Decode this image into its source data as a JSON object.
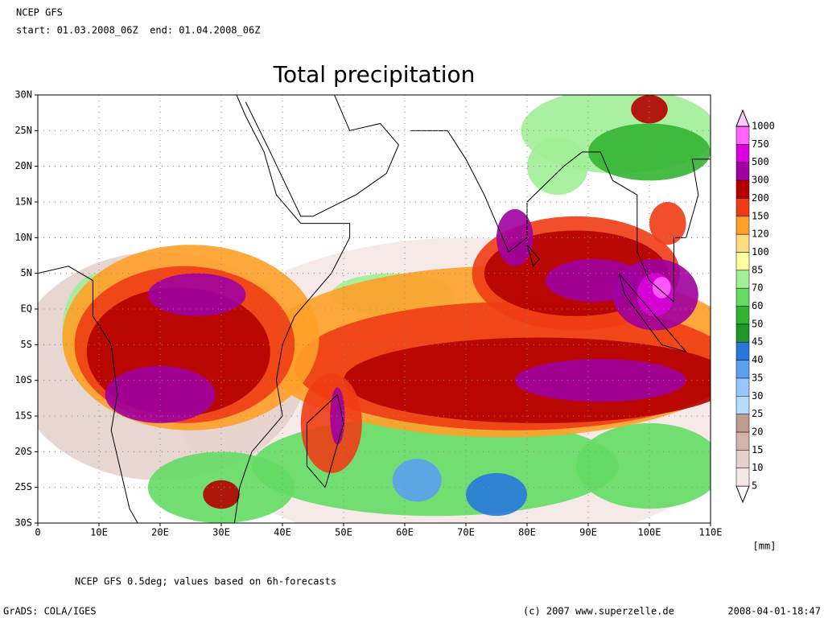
{
  "header": {
    "model": "NCEP GFS",
    "period": "start: 01.03.2008_06Z  end: 01.04.2008_06Z"
  },
  "title": "Total precipitation",
  "map": {
    "lat_labels": [
      "30N",
      "25N",
      "20N",
      "15N",
      "10N",
      "5N",
      "EQ",
      "5S",
      "10S",
      "15S",
      "20S",
      "25S",
      "30S"
    ],
    "lon_labels": [
      "0",
      "10E",
      "20E",
      "30E",
      "40E",
      "50E",
      "60E",
      "70E",
      "80E",
      "90E",
      "100E",
      "110E"
    ]
  },
  "legend": {
    "levels": [
      "5",
      "10",
      "15",
      "20",
      "25",
      "30",
      "35",
      "40",
      "45",
      "50",
      "60",
      "70",
      "85",
      "100",
      "120",
      "150",
      "200",
      "300",
      "500",
      "750",
      "1000"
    ],
    "colors": [
      "#ffffff",
      "#f5e8e6",
      "#e6d2cc",
      "#d2b4aa",
      "#c09b91",
      "#b4dcff",
      "#96c8ff",
      "#5aa0f0",
      "#2878dc",
      "#1e9628",
      "#32b432",
      "#64dc64",
      "#a0f096",
      "#ffffa0",
      "#ffdc82",
      "#ffa028",
      "#f03c14",
      "#b40000",
      "#a000a0",
      "#dc00dc",
      "#ff64ff",
      "#ffc8ff"
    ],
    "unit": "[mm]"
  },
  "footer": {
    "note": "NCEP GFS 0.5deg; values based on 6h-forecasts",
    "software": "GrADS: COLA/IGES",
    "copyright": "(c) 2007 www.superzelle.de",
    "timestamp": "2008-04-01-18:47"
  }
}
